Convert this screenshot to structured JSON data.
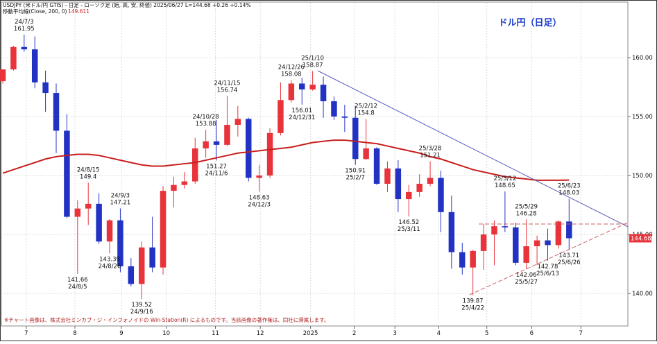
{
  "chart_data": {
    "type": "candlestick",
    "title": "ドル円（日足）",
    "header": "USDJPY (米ドル/円 GTIS) - 日足 - ローソク足 (始, 高, 安, 終値)  2025/06/27  L=144.68  +0.26  +0.14%",
    "ma_label": "移動平均線(Close, 200, 0)",
    "ma_last": 149.611,
    "footnote": "※チャート画像は、株式会社ミンカブ・ジ・インフォノイドの Win-Station(R) によるものです。当該画像の著作権は、同社に帰属します。",
    "up_color": "#e8333a",
    "down_color": "#2233c4",
    "ma_color": "#c81e1e",
    "ylim": [
      137.24,
      164.65
    ],
    "xlim": [
      -0.26,
      58.5
    ],
    "yticks": [
      {
        "value": 140,
        "label": "140.00"
      },
      {
        "value": 145,
        "label": "145.00"
      },
      {
        "value": 150,
        "label": "150.00"
      },
      {
        "value": 155,
        "label": "155.00"
      },
      {
        "value": 160,
        "label": "160.00"
      }
    ],
    "xticks": [
      {
        "value": 2.2,
        "label": "7"
      },
      {
        "value": 6.75,
        "label": "8"
      },
      {
        "value": 11.1,
        "label": "9"
      },
      {
        "value": 15.3,
        "label": "10"
      },
      {
        "value": 19.9,
        "label": "11"
      },
      {
        "value": 24.1,
        "label": "12"
      },
      {
        "value": 28.8,
        "label": "2025"
      },
      {
        "value": 32.9,
        "label": "2"
      },
      {
        "value": 36.7,
        "label": "3"
      },
      {
        "value": 40.8,
        "label": "4"
      },
      {
        "value": 45.3,
        "label": "5"
      },
      {
        "value": 49.5,
        "label": "6"
      },
      {
        "value": 54.1,
        "label": "7"
      }
    ],
    "open": [
      158.0,
      159.0,
      160.9,
      160.7,
      157.9,
      157.0,
      153.8,
      146.5,
      147.2,
      147.6,
      144.4,
      146.2,
      142.3,
      140.8,
      143.9,
      142.2,
      148.7,
      149.2,
      149.5,
      152.3,
      152.9,
      152.6,
      154.3,
      154.8,
      149.8,
      150.0,
      153.6,
      156.4,
      157.8,
      157.3,
      157.7,
      156.3,
      155.0,
      154.9,
      151.4,
      152.3,
      149.3,
      150.6,
      148.0,
      148.6,
      149.3,
      149.8,
      146.9,
      143.5,
      142.2,
      143.6,
      145.0,
      145.7,
      145.6,
      142.6,
      144.0,
      144.5,
      144.1,
      146.1
    ],
    "high": [
      159.0,
      161.0,
      161.95,
      161.8,
      158.9,
      157.8,
      155.2,
      147.9,
      149.4,
      148.5,
      146.3,
      147.21,
      143.0,
      144.4,
      146.5,
      149.1,
      149.9,
      150.3,
      153.2,
      153.88,
      154.7,
      156.74,
      155.9,
      154.9,
      150.9,
      154.0,
      157.9,
      158.08,
      158.3,
      158.87,
      158.4,
      156.7,
      156.0,
      155.9,
      154.8,
      152.4,
      151.2,
      151.3,
      149.2,
      150.1,
      151.21,
      150.4,
      148.3,
      144.3,
      143.7,
      145.9,
      146.2,
      148.65,
      146.0,
      146.28,
      144.9,
      145.5,
      146.2,
      148.03
    ],
    "low": [
      157.8,
      158.9,
      160.5,
      157.4,
      155.4,
      151.9,
      146.4,
      141.66,
      145.8,
      144.2,
      143.39,
      141.8,
      140.6,
      139.52,
      141.8,
      141.6,
      147.3,
      148.9,
      149.3,
      151.5,
      151.27,
      152.5,
      153.3,
      149.5,
      148.63,
      149.8,
      153.4,
      156.2,
      156.01,
      157.2,
      154.9,
      154.7,
      153.7,
      150.91,
      151.3,
      149.2,
      148.6,
      146.9,
      146.52,
      148.2,
      149.1,
      145.2,
      142.1,
      141.6,
      139.87,
      142.0,
      142.4,
      145.2,
      142.4,
      142.06,
      142.4,
      142.78,
      143.8,
      143.71
    ],
    "close": [
      159.0,
      160.9,
      160.7,
      157.9,
      157.0,
      153.8,
      146.5,
      147.2,
      147.6,
      144.4,
      146.2,
      142.3,
      140.8,
      143.9,
      142.2,
      148.7,
      149.2,
      149.5,
      152.3,
      152.9,
      152.6,
      154.3,
      154.8,
      149.8,
      150.0,
      153.6,
      156.4,
      157.8,
      157.3,
      157.7,
      156.3,
      155.0,
      154.9,
      151.4,
      152.3,
      149.3,
      150.6,
      148.0,
      148.6,
      149.3,
      149.8,
      146.9,
      143.5,
      142.2,
      143.6,
      145.0,
      145.7,
      145.6,
      142.6,
      144.0,
      144.5,
      144.1,
      146.1,
      144.68
    ],
    "ma": [
      150.2,
      150.5,
      150.8,
      151.1,
      151.4,
      151.6,
      151.7,
      151.8,
      151.8,
      151.7,
      151.5,
      151.3,
      151.1,
      150.9,
      150.8,
      150.8,
      150.9,
      151.0,
      151.1,
      151.3,
      151.5,
      151.7,
      151.9,
      152.0,
      152.1,
      152.2,
      152.3,
      152.4,
      152.6,
      152.8,
      152.9,
      153.0,
      153.0,
      152.9,
      152.8,
      152.7,
      152.5,
      152.3,
      152.1,
      151.9,
      151.6,
      151.4,
      151.1,
      150.8,
      150.5,
      150.3,
      150.1,
      149.9,
      149.8,
      149.7,
      149.6,
      149.6,
      149.6,
      149.611
    ],
    "last_price": 144.68,
    "annotations": [
      {
        "date": "24/7/3",
        "value": 161.95
      },
      {
        "date": "24/8/5",
        "value": 141.66
      },
      {
        "date": "24/8/15",
        "value": 149.4
      },
      {
        "date": "24/8/26",
        "value": 143.39
      },
      {
        "date": "24/9/3",
        "value": 147.21
      },
      {
        "date": "24/9/16",
        "value": 139.52
      },
      {
        "date": "24/10/28",
        "value": 153.88
      },
      {
        "date": "24/11/6",
        "value": 151.27
      },
      {
        "date": "24/11/15",
        "value": 156.74
      },
      {
        "date": "24/12/3",
        "value": 148.63
      },
      {
        "date": "24/12/26",
        "value": 158.08
      },
      {
        "date": "24/12/31",
        "value": 156.01
      },
      {
        "date": "25/1/10",
        "value": 158.87
      },
      {
        "date": "25/2/7",
        "value": 150.91
      },
      {
        "date": "25/2/12",
        "value": 154.8
      },
      {
        "date": "25/3/11",
        "value": 146.52
      },
      {
        "date": "25/3/28",
        "value": 151.21
      },
      {
        "date": "25/4/22",
        "value": 139.87
      },
      {
        "date": "25/5/12",
        "value": 148.65
      },
      {
        "date": "25/5/27",
        "value": 142.06
      },
      {
        "date": "25/5/29",
        "value": 146.28
      },
      {
        "date": "25/6/13",
        "value": 142.78
      },
      {
        "date": "25/6/23",
        "value": 148.03
      },
      {
        "date": "25/6/26",
        "value": 143.71
      }
    ]
  }
}
